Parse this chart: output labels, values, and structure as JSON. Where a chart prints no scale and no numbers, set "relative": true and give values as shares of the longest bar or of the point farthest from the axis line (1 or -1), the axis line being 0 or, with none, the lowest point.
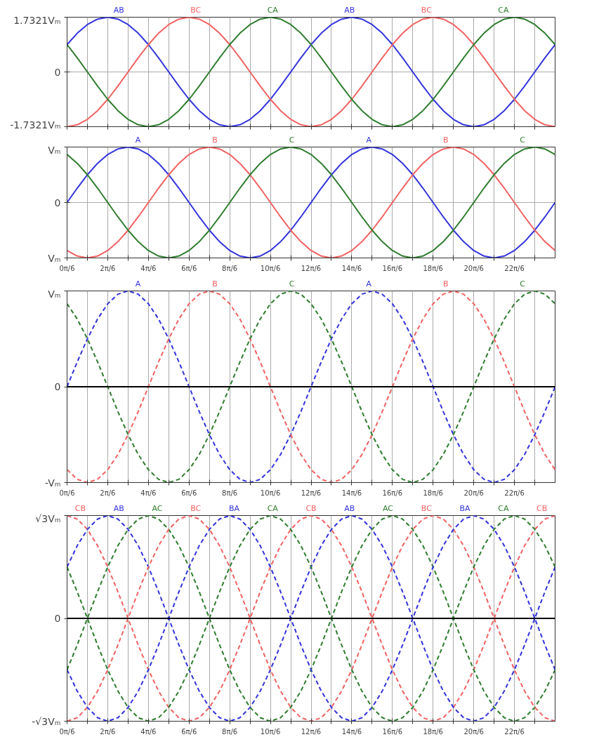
{
  "chart_data": [
    {
      "type": "line",
      "line_style": "solid",
      "grid": true,
      "tick_labels": "y",
      "x": [
        0,
        0.2618,
        0.5236,
        0.7854,
        1.0472,
        1.309,
        1.5708,
        1.8326,
        2.0944,
        2.3562,
        2.618,
        2.8798,
        3.1416,
        3.4034,
        3.6652,
        3.927,
        4.1888,
        4.4506,
        4.7124,
        4.9742,
        5.236,
        5.4978,
        5.7596,
        6.0214,
        6.2832,
        6.545,
        6.8068,
        7.0686,
        7.3304,
        7.5922,
        7.854,
        8.1158,
        8.3776,
        8.6394,
        8.9012,
        9.163,
        9.4248,
        9.6866,
        9.9484,
        10.2102,
        10.472,
        10.7338,
        10.9956,
        11.2574,
        11.5192,
        11.781,
        12.0428,
        12.3046,
        12.5664
      ],
      "xlim": [
        0,
        12.5664
      ],
      "xticks": [
        {
          "value": 0,
          "label": null
        },
        {
          "value": 0.5236,
          "label": null
        },
        {
          "value": 1.0472,
          "label": null
        },
        {
          "value": 1.5708,
          "label": null
        },
        {
          "value": 2.0944,
          "label": null
        },
        {
          "value": 2.618,
          "label": null
        },
        {
          "value": 3.1416,
          "label": null
        },
        {
          "value": 3.6652,
          "label": null
        },
        {
          "value": 4.1888,
          "label": null
        },
        {
          "value": 4.7124,
          "label": null
        },
        {
          "value": 5.236,
          "label": null
        },
        {
          "value": 5.7596,
          "label": null
        },
        {
          "value": 6.2832,
          "label": null
        },
        {
          "value": 6.8068,
          "label": null
        },
        {
          "value": 7.3304,
          "label": null
        },
        {
          "value": 7.854,
          "label": null
        },
        {
          "value": 8.3776,
          "label": null
        },
        {
          "value": 8.9012,
          "label": null
        },
        {
          "value": 9.4248,
          "label": null
        },
        {
          "value": 9.9484,
          "label": null
        },
        {
          "value": 10.472,
          "label": null
        },
        {
          "value": 10.9956,
          "label": null
        },
        {
          "value": 11.5192,
          "label": null
        },
        {
          "value": 12.0428,
          "label": null
        }
      ],
      "ylim": [
        -1.7321,
        1.7321
      ],
      "yticks": [
        {
          "value": -1.7321,
          "label": "-1.7321Vₘ"
        },
        0,
        {
          "value": 1.7321,
          "label": "1.7321Vₘ"
        }
      ],
      "series": [
        {
          "color": "#3333dd",
          "values": [
            0.866,
            1.225,
            1.5,
            1.673,
            1.7321,
            1.673,
            1.5,
            1.225,
            0.866,
            0.448,
            0,
            -0.448,
            -0.866,
            -1.225,
            -1.5,
            -1.673,
            -1.7321,
            -1.673,
            -1.5,
            -1.225,
            -0.866,
            -0.448,
            0,
            0.448,
            0.866,
            1.225,
            1.5,
            1.673,
            1.7321,
            1.673,
            1.5,
            1.225,
            0.866,
            0.448,
            0,
            -0.448,
            -0.866,
            -1.225,
            -1.5,
            -1.673,
            -1.7321,
            -1.673,
            -1.5,
            -1.225,
            -0.866,
            -0.448,
            0,
            0.448,
            0.866
          ]
        },
        {
          "color": "#f26161",
          "values": [
            -1.7321,
            -1.673,
            -1.5,
            -1.225,
            -0.866,
            -0.448,
            0,
            0.448,
            0.866,
            1.225,
            1.5,
            1.673,
            1.7321,
            1.673,
            1.5,
            1.225,
            0.866,
            0.448,
            0,
            -0.448,
            -0.866,
            -1.225,
            -1.5,
            -1.673,
            -1.7321,
            -1.673,
            -1.5,
            -1.225,
            -0.866,
            -0.448,
            0,
            0.448,
            0.866,
            1.225,
            1.5,
            1.673,
            1.7321,
            1.673,
            1.5,
            1.225,
            0.866,
            0.448,
            0,
            -0.448,
            -0.866,
            -1.225,
            -1.5,
            -1.673,
            -1.7321
          ]
        },
        {
          "color": "#2e7d2e",
          "values": [
            0.866,
            0.448,
            0,
            -0.448,
            -0.866,
            -1.225,
            -1.5,
            -1.673,
            -1.7321,
            -1.673,
            -1.5,
            -1.225,
            -0.866,
            -0.448,
            0,
            0.448,
            0.866,
            1.225,
            1.5,
            1.673,
            1.7321,
            1.673,
            1.5,
            1.225,
            0.866,
            0.448,
            0,
            -0.448,
            -0.866,
            -1.225,
            -1.5,
            -1.673,
            -1.7321,
            -1.673,
            -1.5,
            -1.225,
            -0.866,
            -0.448,
            0,
            0.448,
            0.866,
            1.225,
            1.5,
            1.673,
            1.7321,
            1.673,
            1.5,
            1.225,
            0.866
          ]
        }
      ],
      "annotations": [
        {
          "text": "AB",
          "x": 1.0472,
          "y": 1.7321
        },
        {
          "text": "BC",
          "x": 3.1416,
          "y": 1.7321
        },
        {
          "text": "CA",
          "x": 5.236,
          "y": 1.7321
        },
        {
          "text": "AB",
          "x": 7.3304,
          "y": 1.7321
        },
        {
          "text": "BC",
          "x": 9.4248,
          "y": 1.7321
        },
        {
          "text": "CA",
          "x": 11.5192,
          "y": 1.7321
        }
      ]
    },
    {
      "type": "line",
      "line_style": "solid",
      "grid": true,
      "relative": true,
      "x": [
        0,
        0.2618,
        0.5236,
        0.7854,
        1.0472,
        1.309,
        1.5708,
        1.8326,
        2.0944,
        2.3562,
        2.618,
        2.8798,
        3.1416,
        3.4034,
        3.6652,
        3.927,
        4.1888,
        4.4506,
        4.7124,
        4.9742,
        5.236,
        5.4978,
        5.7596,
        6.0214,
        6.2832,
        6.545,
        6.8068,
        7.0686,
        7.3304,
        7.5922,
        7.854,
        8.1158,
        8.3776,
        8.6394,
        8.9012,
        9.163,
        9.4248,
        9.6866,
        9.9484,
        10.2102,
        10.472,
        10.7338,
        10.9956,
        11.2574,
        11.5192,
        11.781,
        12.0428,
        12.3046,
        12.5664
      ],
      "xlim": [
        0,
        12.5664
      ],
      "xticks": [
        {
          "value": 0,
          "label": "0π/6"
        },
        {
          "value": 0.5236,
          "label": null
        },
        {
          "value": 1.0472,
          "label": "2π/6"
        },
        {
          "value": 1.5708,
          "label": null
        },
        {
          "value": 2.0944,
          "label": "4π/6"
        },
        {
          "value": 2.618,
          "label": null
        },
        {
          "value": 3.1416,
          "label": "6π/6"
        },
        {
          "value": 3.6652,
          "label": null
        },
        {
          "value": 4.1888,
          "label": "8π/6"
        },
        {
          "value": 4.7124,
          "label": null
        },
        {
          "value": 5.236,
          "label": "10π/6"
        },
        {
          "value": 5.7596,
          "label": null
        },
        {
          "value": 6.2832,
          "label": "12π/6"
        },
        {
          "value": 6.8068,
          "label": null
        },
        {
          "value": 7.3304,
          "label": "14π/6"
        },
        {
          "value": 7.854,
          "label": null
        },
        {
          "value": 8.3776,
          "label": "16π/6"
        },
        {
          "value": 8.9012,
          "label": null
        },
        {
          "value": 9.4248,
          "label": "18π/6"
        },
        {
          "value": 9.9484,
          "label": null
        },
        {
          "value": 10.472,
          "label": "20π/6"
        },
        {
          "value": 10.9956,
          "label": null
        },
        {
          "value": 11.5192,
          "label": "22π/6"
        },
        {
          "value": 12.0428,
          "label": null
        }
      ],
      "series": [
        {
          "color": "#3333dd",
          "values": [
            0,
            0.259,
            0.5,
            0.707,
            0.866,
            0.966,
            1,
            0.966,
            0.866,
            0.707,
            0.5,
            0.259,
            0,
            -0.259,
            -0.5,
            -0.707,
            -0.866,
            -0.966,
            -1,
            -0.966,
            -0.866,
            -0.707,
            -0.5,
            -0.259,
            0,
            0.259,
            0.5,
            0.707,
            0.866,
            0.966,
            1,
            0.966,
            0.866,
            0.707,
            0.5,
            0.259,
            0,
            -0.259,
            -0.5,
            -0.707,
            -0.866,
            -0.966,
            -1,
            -0.966,
            -0.866,
            -0.707,
            -0.5,
            -0.259,
            0
          ]
        },
        {
          "color": "#f26161",
          "values": [
            -0.866,
            -0.966,
            -1,
            -0.966,
            -0.866,
            -0.707,
            -0.5,
            -0.259,
            0,
            0.259,
            0.5,
            0.707,
            0.866,
            0.966,
            1,
            0.966,
            0.866,
            0.707,
            0.5,
            0.259,
            0,
            -0.259,
            -0.5,
            -0.707,
            -0.866,
            -0.966,
            -1,
            -0.966,
            -0.866,
            -0.707,
            -0.5,
            -0.259,
            0,
            0.259,
            0.5,
            0.707,
            0.866,
            0.966,
            1,
            0.966,
            0.866,
            0.707,
            0.5,
            0.259,
            0,
            -0.259,
            -0.5,
            -0.707,
            -0.866
          ]
        },
        {
          "color": "#2e7d2e",
          "values": [
            0.866,
            0.707,
            0.5,
            0.259,
            0,
            -0.259,
            -0.5,
            -0.707,
            -0.866,
            -0.966,
            -1,
            -0.966,
            -0.866,
            -0.707,
            -0.5,
            -0.259,
            0,
            0.259,
            0.5,
            0.707,
            0.866,
            0.966,
            1,
            0.966,
            0.866,
            0.707,
            0.5,
            0.259,
            0,
            -0.259,
            -0.5,
            -0.707,
            -0.866,
            -0.966,
            -1,
            -0.966,
            -0.866,
            -0.707,
            -0.5,
            -0.259,
            0,
            0.259,
            0.5,
            0.707,
            0.866,
            0.966,
            1,
            0.966,
            0.866
          ]
        }
      ],
      "annotations": [
        "Vₘ",
        "0",
        "Vₘ",
        {
          "text": "A",
          "x": 1.5708,
          "y": 1
        },
        {
          "text": "B",
          "x": 3.6652,
          "y": 1
        },
        {
          "text": "C",
          "x": 5.7596,
          "y": 1
        },
        {
          "text": "A",
          "x": 7.854,
          "y": 1
        },
        {
          "text": "B",
          "x": 9.9484,
          "y": 1
        },
        {
          "text": "C",
          "x": 12.0428,
          "y": 1
        }
      ]
    },
    {
      "type": "line",
      "line_style": "dashed",
      "grid": "x",
      "relative": true,
      "x": [
        0,
        0.2618,
        0.5236,
        0.7854,
        1.0472,
        1.309,
        1.5708,
        1.8326,
        2.0944,
        2.3562,
        2.618,
        2.8798,
        3.1416,
        3.4034,
        3.6652,
        3.927,
        4.1888,
        4.4506,
        4.7124,
        4.9742,
        5.236,
        5.4978,
        5.7596,
        6.0214,
        6.2832,
        6.545,
        6.8068,
        7.0686,
        7.3304,
        7.5922,
        7.854,
        8.1158,
        8.3776,
        8.6394,
        8.9012,
        9.163,
        9.4248,
        9.6866,
        9.9484,
        10.2102,
        10.472,
        10.7338,
        10.9956,
        11.2574,
        11.5192,
        11.781,
        12.0428,
        12.3046,
        12.5664
      ],
      "xlim": [
        0,
        12.5664
      ],
      "xticks": [
        {
          "value": 0,
          "label": "0π/6"
        },
        {
          "value": 0.5236,
          "label": null
        },
        {
          "value": 1.0472,
          "label": "2π/6"
        },
        {
          "value": 1.5708,
          "label": null
        },
        {
          "value": 2.0944,
          "label": "4π/6"
        },
        {
          "value": 2.618,
          "label": null
        },
        {
          "value": 3.1416,
          "label": "6π/6"
        },
        {
          "value": 3.6652,
          "label": null
        },
        {
          "value": 4.1888,
          "label": "8π/6"
        },
        {
          "value": 4.7124,
          "label": null
        },
        {
          "value": 5.236,
          "label": "10π/6"
        },
        {
          "value": 5.7596,
          "label": null
        },
        {
          "value": 6.2832,
          "label": "12π/6"
        },
        {
          "value": 6.8068,
          "label": null
        },
        {
          "value": 7.3304,
          "label": "14π/6"
        },
        {
          "value": 7.854,
          "label": null
        },
        {
          "value": 8.3776,
          "label": "16π/6"
        },
        {
          "value": 8.9012,
          "label": null
        },
        {
          "value": 9.4248,
          "label": "18π/6"
        },
        {
          "value": 9.9484,
          "label": null
        },
        {
          "value": 10.472,
          "label": "20π/6"
        },
        {
          "value": 10.9956,
          "label": null
        },
        {
          "value": 11.5192,
          "label": "22π/6"
        },
        {
          "value": 12.0428,
          "label": null
        }
      ],
      "ref_lines": [
        {
          "axis": "y",
          "value": 0,
          "color": "#000000"
        }
      ],
      "series": [
        {
          "color": "#3333dd",
          "values": [
            0,
            0.259,
            0.5,
            0.707,
            0.866,
            0.966,
            1,
            0.966,
            0.866,
            0.707,
            0.5,
            0.259,
            0,
            -0.259,
            -0.5,
            -0.707,
            -0.866,
            -0.966,
            -1,
            -0.966,
            -0.866,
            -0.707,
            -0.5,
            -0.259,
            0,
            0.259,
            0.5,
            0.707,
            0.866,
            0.966,
            1,
            0.966,
            0.866,
            0.707,
            0.5,
            0.259,
            0,
            -0.259,
            -0.5,
            -0.707,
            -0.866,
            -0.966,
            -1,
            -0.966,
            -0.866,
            -0.707,
            -0.5,
            -0.259,
            0
          ]
        },
        {
          "color": "#f26161",
          "values": [
            -0.866,
            -0.966,
            -1,
            -0.966,
            -0.866,
            -0.707,
            -0.5,
            -0.259,
            0,
            0.259,
            0.5,
            0.707,
            0.866,
            0.966,
            1,
            0.966,
            0.866,
            0.707,
            0.5,
            0.259,
            0,
            -0.259,
            -0.5,
            -0.707,
            -0.866,
            -0.966,
            -1,
            -0.966,
            -0.866,
            -0.707,
            -0.5,
            -0.259,
            0,
            0.259,
            0.5,
            0.707,
            0.866,
            0.966,
            1,
            0.966,
            0.866,
            0.707,
            0.5,
            0.259,
            0,
            -0.259,
            -0.5,
            -0.707,
            -0.866
          ]
        },
        {
          "color": "#2e7d2e",
          "values": [
            0.866,
            0.707,
            0.5,
            0.259,
            0,
            -0.259,
            -0.5,
            -0.707,
            -0.866,
            -0.966,
            -1,
            -0.966,
            -0.866,
            -0.707,
            -0.5,
            -0.259,
            0,
            0.259,
            0.5,
            0.707,
            0.866,
            0.966,
            1,
            0.966,
            0.866,
            0.707,
            0.5,
            0.259,
            0,
            -0.259,
            -0.5,
            -0.707,
            -0.866,
            -0.966,
            -1,
            -0.966,
            -0.866,
            -0.707,
            -0.5,
            -0.259,
            0,
            0.259,
            0.5,
            0.707,
            0.866,
            0.966,
            1,
            0.966,
            0.866
          ]
        }
      ],
      "annotations": [
        "Vₘ",
        "0",
        "-Vₘ",
        {
          "text": "A",
          "x": 1.5708,
          "y": 1
        },
        {
          "text": "B",
          "x": 3.6652,
          "y": 1
        },
        {
          "text": "C",
          "x": 5.7596,
          "y": 1
        },
        {
          "text": "A",
          "x": 7.854,
          "y": 1
        },
        {
          "text": "B",
          "x": 9.9484,
          "y": 1
        },
        {
          "text": "C",
          "x": 12.0428,
          "y": 1
        }
      ]
    },
    {
      "type": "line",
      "line_style": "dashed",
      "grid": "x",
      "relative": true,
      "x": [
        0,
        0.2618,
        0.5236,
        0.7854,
        1.0472,
        1.309,
        1.5708,
        1.8326,
        2.0944,
        2.3562,
        2.618,
        2.8798,
        3.1416,
        3.4034,
        3.6652,
        3.927,
        4.1888,
        4.4506,
        4.7124,
        4.9742,
        5.236,
        5.4978,
        5.7596,
        6.0214,
        6.2832,
        6.545,
        6.8068,
        7.0686,
        7.3304,
        7.5922,
        7.854,
        8.1158,
        8.3776,
        8.6394,
        8.9012,
        9.163,
        9.4248,
        9.6866,
        9.9484,
        10.2102,
        10.472,
        10.7338,
        10.9956,
        11.2574,
        11.5192,
        11.781,
        12.0428,
        12.3046,
        12.5664
      ],
      "xlim": [
        0,
        12.5664
      ],
      "xticks": [
        {
          "value": 0,
          "label": "0π/6"
        },
        {
          "value": 0.5236,
          "label": null
        },
        {
          "value": 1.0472,
          "label": "2π/6"
        },
        {
          "value": 1.5708,
          "label": null
        },
        {
          "value": 2.0944,
          "label": "4π/6"
        },
        {
          "value": 2.618,
          "label": null
        },
        {
          "value": 3.1416,
          "label": "6π/6"
        },
        {
          "value": 3.6652,
          "label": null
        },
        {
          "value": 4.1888,
          "label": "8π/6"
        },
        {
          "value": 4.7124,
          "label": null
        },
        {
          "value": 5.236,
          "label": "10π/6"
        },
        {
          "value": 5.7596,
          "label": null
        },
        {
          "value": 6.2832,
          "label": "12π/6"
        },
        {
          "value": 6.8068,
          "label": null
        },
        {
          "value": 7.3304,
          "label": "14π/6"
        },
        {
          "value": 7.854,
          "label": null
        },
        {
          "value": 8.3776,
          "label": "16π/6"
        },
        {
          "value": 8.9012,
          "label": null
        },
        {
          "value": 9.4248,
          "label": "18π/6"
        },
        {
          "value": 9.9484,
          "label": null
        },
        {
          "value": 10.472,
          "label": "20π/6"
        },
        {
          "value": 10.9956,
          "label": null
        },
        {
          "value": 11.5192,
          "label": "22π/6"
        },
        {
          "value": 12.0428,
          "label": null
        }
      ],
      "ref_lines": [
        {
          "axis": "y",
          "value": 0,
          "color": "#000000"
        }
      ],
      "series": [
        {
          "color": "#f26161",
          "values": [
            1,
            0.966,
            0.866,
            0.707,
            0.5,
            0.259,
            0,
            -0.259,
            -0.5,
            -0.707,
            -0.866,
            -0.966,
            -1,
            -0.966,
            -0.866,
            -0.707,
            -0.5,
            -0.259,
            0,
            0.259,
            0.5,
            0.707,
            0.866,
            0.966,
            1,
            0.966,
            0.866,
            0.707,
            0.5,
            0.259,
            0,
            -0.259,
            -0.5,
            -0.707,
            -0.866,
            -0.966,
            -1,
            -0.966,
            -0.866,
            -0.707,
            -0.5,
            -0.259,
            0,
            0.259,
            0.5,
            0.707,
            0.866,
            0.966,
            1
          ]
        },
        {
          "color": "#3333dd",
          "values": [
            0.5,
            0.707,
            0.866,
            0.966,
            1,
            0.966,
            0.866,
            0.707,
            0.5,
            0.259,
            0,
            -0.259,
            -0.5,
            -0.707,
            -0.866,
            -0.966,
            -1,
            -0.966,
            -0.866,
            -0.707,
            -0.5,
            -0.259,
            0,
            0.259,
            0.5,
            0.707,
            0.866,
            0.966,
            1,
            0.966,
            0.866,
            0.707,
            0.5,
            0.259,
            0,
            -0.259,
            -0.5,
            -0.707,
            -0.866,
            -0.966,
            -1,
            -0.966,
            -0.866,
            -0.707,
            -0.5,
            -0.259,
            0,
            0.259,
            0.5
          ]
        },
        {
          "color": "#2e7d2e",
          "values": [
            -0.5,
            -0.259,
            0,
            0.259,
            0.5,
            0.707,
            0.866,
            0.966,
            1,
            0.966,
            0.866,
            0.707,
            0.5,
            0.259,
            0,
            -0.259,
            -0.5,
            -0.707,
            -0.866,
            -0.966,
            -1,
            -0.966,
            -0.866,
            -0.707,
            -0.5,
            -0.259,
            0,
            0.259,
            0.5,
            0.707,
            0.866,
            0.966,
            1,
            0.966,
            0.866,
            0.707,
            0.5,
            0.259,
            0,
            -0.259,
            -0.5,
            -0.707,
            -0.866,
            -0.966,
            -1,
            -0.966,
            -0.866,
            -0.707,
            -0.5
          ]
        },
        {
          "color": "#f26161",
          "values": [
            -1,
            -0.966,
            -0.866,
            -0.707,
            -0.5,
            -0.259,
            0,
            0.259,
            0.5,
            0.707,
            0.866,
            0.966,
            1,
            0.966,
            0.866,
            0.707,
            0.5,
            0.259,
            0,
            -0.259,
            -0.5,
            -0.707,
            -0.866,
            -0.966,
            -1,
            -0.966,
            -0.866,
            -0.707,
            -0.5,
            -0.259,
            0,
            0.259,
            0.5,
            0.707,
            0.866,
            0.966,
            1,
            0.966,
            0.866,
            0.707,
            0.5,
            0.259,
            0,
            -0.259,
            -0.5,
            -0.707,
            -0.866,
            -0.966,
            -1
          ]
        },
        {
          "color": "#3333dd",
          "values": [
            -0.5,
            -0.707,
            -0.866,
            -0.966,
            -1,
            -0.966,
            -0.866,
            -0.707,
            -0.5,
            -0.259,
            0,
            0.259,
            0.5,
            0.707,
            0.866,
            0.966,
            1,
            0.966,
            0.866,
            0.707,
            0.5,
            0.259,
            0,
            -0.259,
            -0.5,
            -0.707,
            -0.866,
            -0.966,
            -1,
            -0.966,
            -0.866,
            -0.707,
            -0.5,
            -0.259,
            0,
            0.259,
            0.5,
            0.707,
            0.866,
            0.966,
            1,
            0.966,
            0.866,
            0.707,
            0.5,
            0.259,
            0,
            -0.259,
            -0.5
          ]
        },
        {
          "color": "#2e7d2e",
          "values": [
            0.5,
            0.259,
            0,
            -0.259,
            -0.5,
            -0.707,
            -0.866,
            -0.966,
            -1,
            -0.966,
            -0.866,
            -0.707,
            -0.5,
            -0.259,
            0,
            0.259,
            0.5,
            0.707,
            0.866,
            0.966,
            1,
            0.966,
            0.866,
            0.707,
            0.5,
            0.259,
            0,
            -0.259,
            -0.5,
            -0.707,
            -0.866,
            -0.966,
            -1,
            -0.966,
            -0.866,
            -0.707,
            -0.5,
            -0.259,
            0,
            0.259,
            0.5,
            0.707,
            0.866,
            0.966,
            1,
            0.966,
            0.866,
            0.707,
            0.5
          ]
        }
      ],
      "annotations": [
        "√3Vₘ",
        "0",
        "-√3Vₘ",
        {
          "text": "CB",
          "x": 0,
          "y": 1
        },
        {
          "text": "AB",
          "x": 1.0472,
          "y": 1
        },
        {
          "text": "AC",
          "x": 2.0944,
          "y": 1
        },
        {
          "text": "BC",
          "x": 3.1416,
          "y": 1
        },
        {
          "text": "BA",
          "x": 4.1888,
          "y": 1
        },
        {
          "text": "CA",
          "x": 5.236,
          "y": 1
        },
        {
          "text": "CB",
          "x": 6.2832,
          "y": 1
        },
        {
          "text": "AB",
          "x": 7.3304,
          "y": 1
        },
        {
          "text": "AC",
          "x": 8.3776,
          "y": 1
        },
        {
          "text": "BC",
          "x": 9.4248,
          "y": 1
        },
        {
          "text": "BA",
          "x": 10.472,
          "y": 1
        },
        {
          "text": "CA",
          "x": 11.5192,
          "y": 1
        },
        {
          "text": "CB",
          "x": 12.5664,
          "y": 1
        }
      ]
    }
  ]
}
